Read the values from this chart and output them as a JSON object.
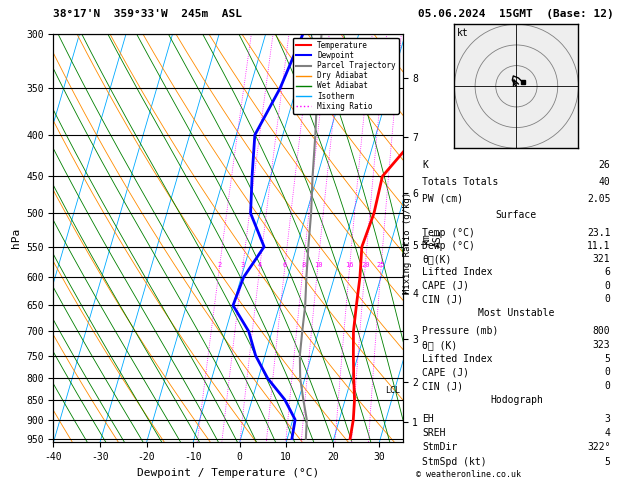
{
  "title_left": "38°17'N  359°33'W  245m  ASL",
  "title_right": "05.06.2024  15GMT  (Base: 12)",
  "xlabel": "Dewpoint / Temperature (°C)",
  "ylabel_left": "hPa",
  "pressure_levels": [
    300,
    350,
    400,
    450,
    500,
    550,
    600,
    650,
    700,
    750,
    800,
    850,
    900,
    950
  ],
  "temp_x": [
    23.1,
    22.5,
    19.0,
    14.0,
    14.5,
    14.0,
    15.5,
    16.5,
    17.5,
    19.0,
    20.5,
    22.0,
    23.0,
    23.5
  ],
  "temp_p": [
    300,
    350,
    400,
    450,
    500,
    550,
    600,
    650,
    700,
    750,
    800,
    850,
    900,
    950
  ],
  "dewp_x": [
    -12.0,
    -13.5,
    -16.0,
    -14.0,
    -12.0,
    -7.0,
    -9.5,
    -10.0,
    -5.0,
    -2.0,
    2.0,
    7.0,
    10.5,
    11.0
  ],
  "dewp_p": [
    300,
    350,
    400,
    450,
    500,
    550,
    600,
    650,
    700,
    750,
    800,
    850,
    900,
    950
  ],
  "parcel_x": [
    -8.0,
    -5.5,
    -3.0,
    -1.0,
    1.0,
    2.5,
    4.0,
    5.5,
    6.5,
    7.5,
    9.0,
    11.0,
    13.0,
    14.0
  ],
  "parcel_p": [
    300,
    350,
    400,
    450,
    500,
    550,
    600,
    650,
    700,
    750,
    800,
    850,
    900,
    950
  ],
  "temp_color": "#ff0000",
  "dewp_color": "#0000ff",
  "parcel_color": "#808080",
  "dry_adiabat_color": "#ff8c00",
  "wet_adiabat_color": "#008000",
  "isotherm_color": "#00aaff",
  "mixing_ratio_color": "#ff00ff",
  "background_color": "#ffffff",
  "xmin": -40,
  "xmax": 35,
  "pmin": 300,
  "pmax": 960,
  "km_ticks": [
    1,
    2,
    3,
    4,
    5,
    6,
    7,
    8
  ],
  "km_pressures": [
    905,
    808,
    715,
    628,
    548,
    472,
    402,
    340
  ],
  "surface_temp": "23.1",
  "surface_dewp": "11.1",
  "theta_e": "321",
  "lifted_index": "6",
  "cape": "0",
  "cin": "0",
  "mu_pressure": "800",
  "mu_theta_e": "323",
  "mu_li": "5",
  "mu_cape": "0",
  "mu_cin": "0",
  "K": "26",
  "TT": "40",
  "PW": "2.05",
  "EH": "3",
  "SREH": "4",
  "StmDir": "322°",
  "StmSpd": "5",
  "LCL_pressure": 828,
  "mixing_ratio_ws": [
    2,
    3,
    4,
    6,
    8,
    10,
    16,
    20,
    25
  ]
}
